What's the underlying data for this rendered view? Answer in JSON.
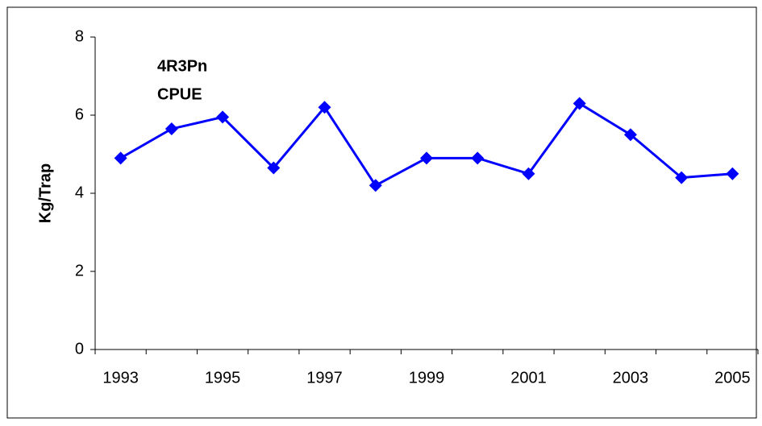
{
  "chart_data": {
    "type": "line",
    "annotation": [
      "4R3Pn",
      "CPUE"
    ],
    "y_label": "Kg/Trap",
    "categories": [
      "1993",
      null,
      "1995",
      null,
      "1997",
      null,
      "1999",
      null,
      "2001",
      null,
      "2003",
      null,
      "2005"
    ],
    "series": [
      {
        "name": "CPUE",
        "color": "#0000ff",
        "values": [
          4.9,
          5.65,
          5.95,
          4.65,
          6.2,
          4.2,
          4.9,
          4.9,
          4.5,
          6.3,
          5.5,
          4.4,
          4.5
        ]
      }
    ],
    "ylim": [
      0,
      8
    ],
    "yticks": [
      0,
      2,
      4,
      6,
      8
    ],
    "grid": false
  }
}
